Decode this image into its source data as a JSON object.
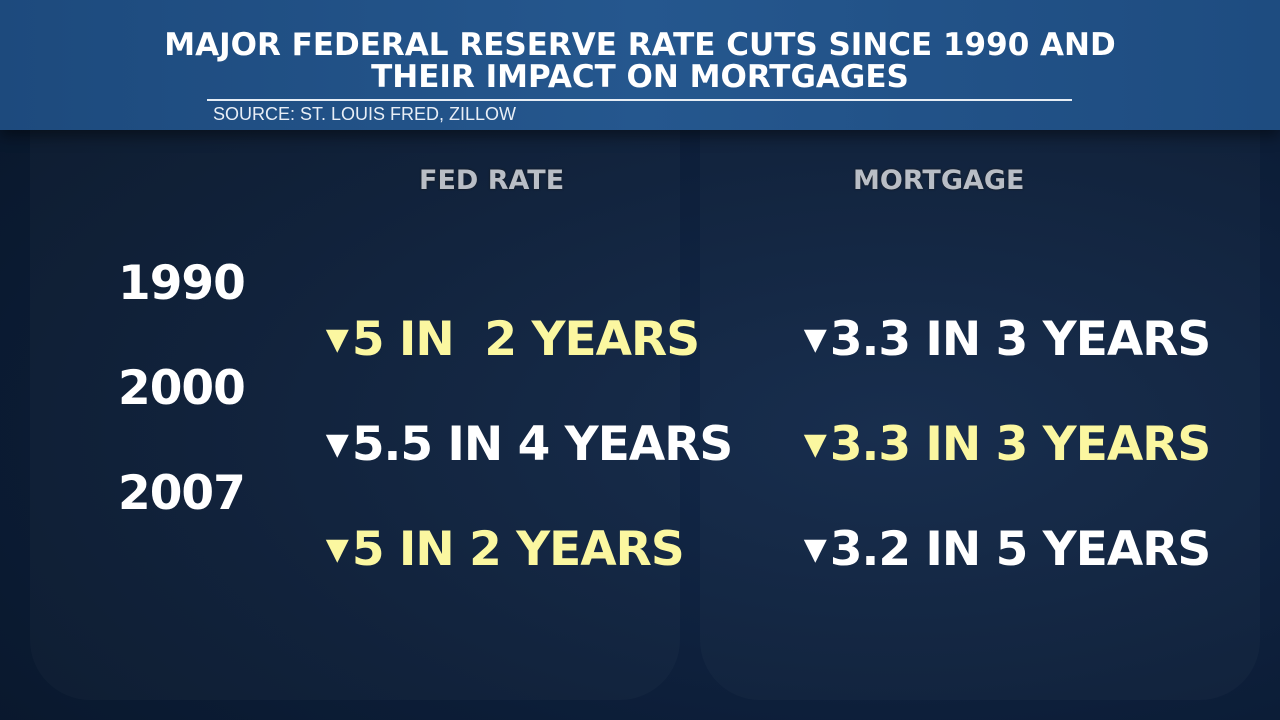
{
  "title": {
    "line1": "MAJOR FEDERAL RESERVE RATE CUTS SINCE 1990 AND",
    "line2": "THEIR IMPACT ON MORTGAGES"
  },
  "source": "SOURCE: ST. LOUIS FRED, ZILLOW",
  "columns": {
    "fed_rate": "FED RATE",
    "mortgage": "MORTGAGE"
  },
  "rows": [
    {
      "year": "1990",
      "fed_rate": "5 IN  2 YEARS",
      "fed_color": "#fbf7a0",
      "mortgage": "3.3 IN 3 YEARS",
      "mortgage_color": "#ffffff"
    },
    {
      "year": "2000",
      "fed_rate": "5.5 IN 4 YEARS",
      "fed_color": "#ffffff",
      "mortgage": "3.3 IN 3 YEARS",
      "mortgage_color": "#fbf7a0"
    },
    {
      "year": "2007",
      "fed_rate": "5 IN 2 YEARS",
      "fed_color": "#fbf7a0",
      "mortgage": "3.2 IN 5 YEARS",
      "mortgage_color": "#ffffff"
    }
  ],
  "icons": {
    "down": "down-triangle-icon"
  },
  "colors": {
    "header": "#25578e",
    "background": "#0c1d37",
    "highlight": "#fbf7a0",
    "text": "#ffffff"
  }
}
